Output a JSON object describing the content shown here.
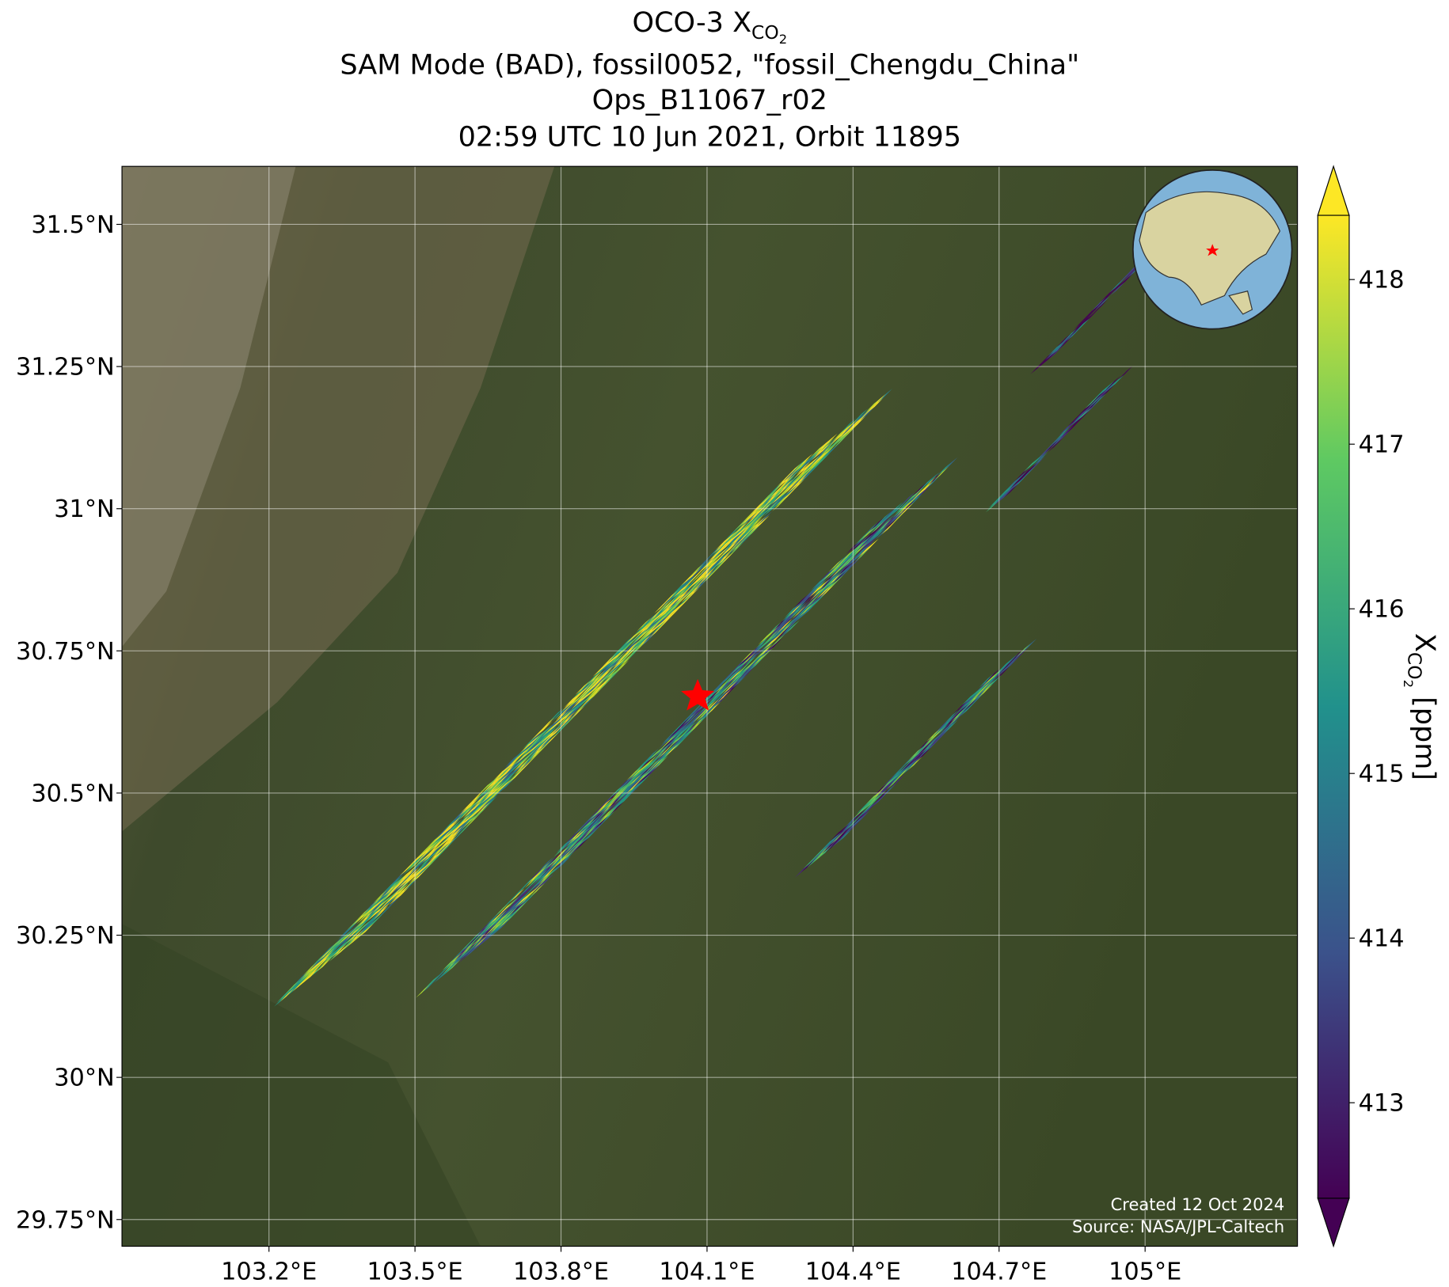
{
  "map": {
    "title": {
      "line1": "OCO-3 X",
      "line1_sub": "CO",
      "line1_subsub": "2",
      "lines": [
        "SAM Mode (BAD), fossil0052, \"fossil_Chengdu_China\"",
        "Ops_B11067_r02",
        "02:59 UTC 10 Jun 2021, Orbit 11895"
      ]
    },
    "xlim": [
      102.898,
      105.313
    ],
    "ylim": [
      29.703,
      31.602
    ],
    "grid": true,
    "xticks": [
      {
        "value": 103.2,
        "label": "103.2°E"
      },
      {
        "value": 103.5,
        "label": "103.5°E"
      },
      {
        "value": 103.8,
        "label": "103.8°E"
      },
      {
        "value": 104.1,
        "label": "104.1°E"
      },
      {
        "value": 104.4,
        "label": "104.4°E"
      },
      {
        "value": 104.7,
        "label": "104.7°E"
      },
      {
        "value": 105,
        "label": "105°E"
      }
    ],
    "yticks": [
      {
        "value": 29.75,
        "label": "29.75°N"
      },
      {
        "value": 30,
        "label": "30°N"
      },
      {
        "value": 30.25,
        "label": "30.25°N"
      },
      {
        "value": 30.5,
        "label": "30.5°N"
      },
      {
        "value": 30.75,
        "label": "30.75°N"
      },
      {
        "value": 31,
        "label": "31°N"
      },
      {
        "value": 31.25,
        "label": "31.25°N"
      },
      {
        "value": 31.5,
        "label": "31.5°N"
      }
    ],
    "colorbar": {
      "label": "X",
      "label_sub": "CO",
      "label_subsub": "2",
      "label_unit": " [ppm]",
      "lim": [
        412.42,
        418.39
      ],
      "ticks": [
        413,
        414,
        415,
        416,
        417,
        418
      ]
    },
    "credits": [
      "Created 12 Oct 2024",
      "Source: NASA/JPL-Caltech"
    ]
  }
}
